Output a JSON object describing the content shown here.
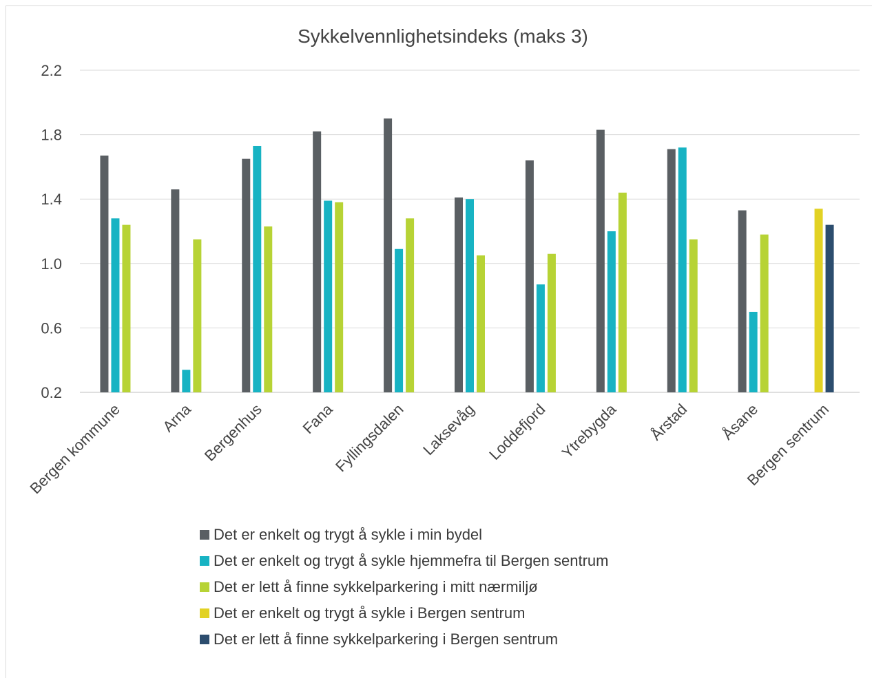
{
  "chart_data": {
    "type": "bar",
    "title": "Sykkelvennlighetsindeks (maks 3)",
    "categories": [
      "Bergen kommune",
      "Arna",
      "Bergenhus",
      "Fana",
      "Fyllingsdalen",
      "Laksevåg",
      "Loddefjord",
      "Ytrebygda",
      "Årstad",
      "Åsane",
      "Bergen sentrum"
    ],
    "ylim": [
      0.2,
      2.2
    ],
    "yticks": [
      "0.2",
      "0.6",
      "1.0",
      "1.4",
      "1.8",
      "2.2"
    ],
    "ytick_values": [
      0.2,
      0.6,
      1.0,
      1.4,
      1.8,
      2.2
    ],
    "grid": true,
    "legend_position": "bottom",
    "series": [
      {
        "name": "Det er enkelt og trygt å sykle i min bydel",
        "color": "#5a5f63",
        "values": [
          1.67,
          1.46,
          1.65,
          1.82,
          1.9,
          1.41,
          1.64,
          1.83,
          1.71,
          1.33,
          null
        ]
      },
      {
        "name": "Det er enkelt og trygt å sykle hjemmefra til Bergen sentrum",
        "color": "#17b3c3",
        "values": [
          1.28,
          0.34,
          1.73,
          1.39,
          1.09,
          1.4,
          0.87,
          1.2,
          1.72,
          0.7,
          null
        ]
      },
      {
        "name": "Det er lett å finne sykkelparkering i mitt nærmiljø",
        "color": "#b7d335",
        "values": [
          1.24,
          1.15,
          1.23,
          1.38,
          1.28,
          1.05,
          1.06,
          1.44,
          1.15,
          1.18,
          null
        ]
      },
      {
        "name": "Det er enkelt og trygt å sykle i Bergen sentrum",
        "color": "#e2d224",
        "values": [
          null,
          null,
          null,
          null,
          null,
          null,
          null,
          null,
          null,
          null,
          1.34
        ]
      },
      {
        "name": "Det er lett å finne sykkelparkering i Bergen sentrum",
        "color": "#2c4d6e",
        "values": [
          null,
          null,
          null,
          null,
          null,
          null,
          null,
          null,
          null,
          null,
          1.24
        ]
      }
    ]
  }
}
